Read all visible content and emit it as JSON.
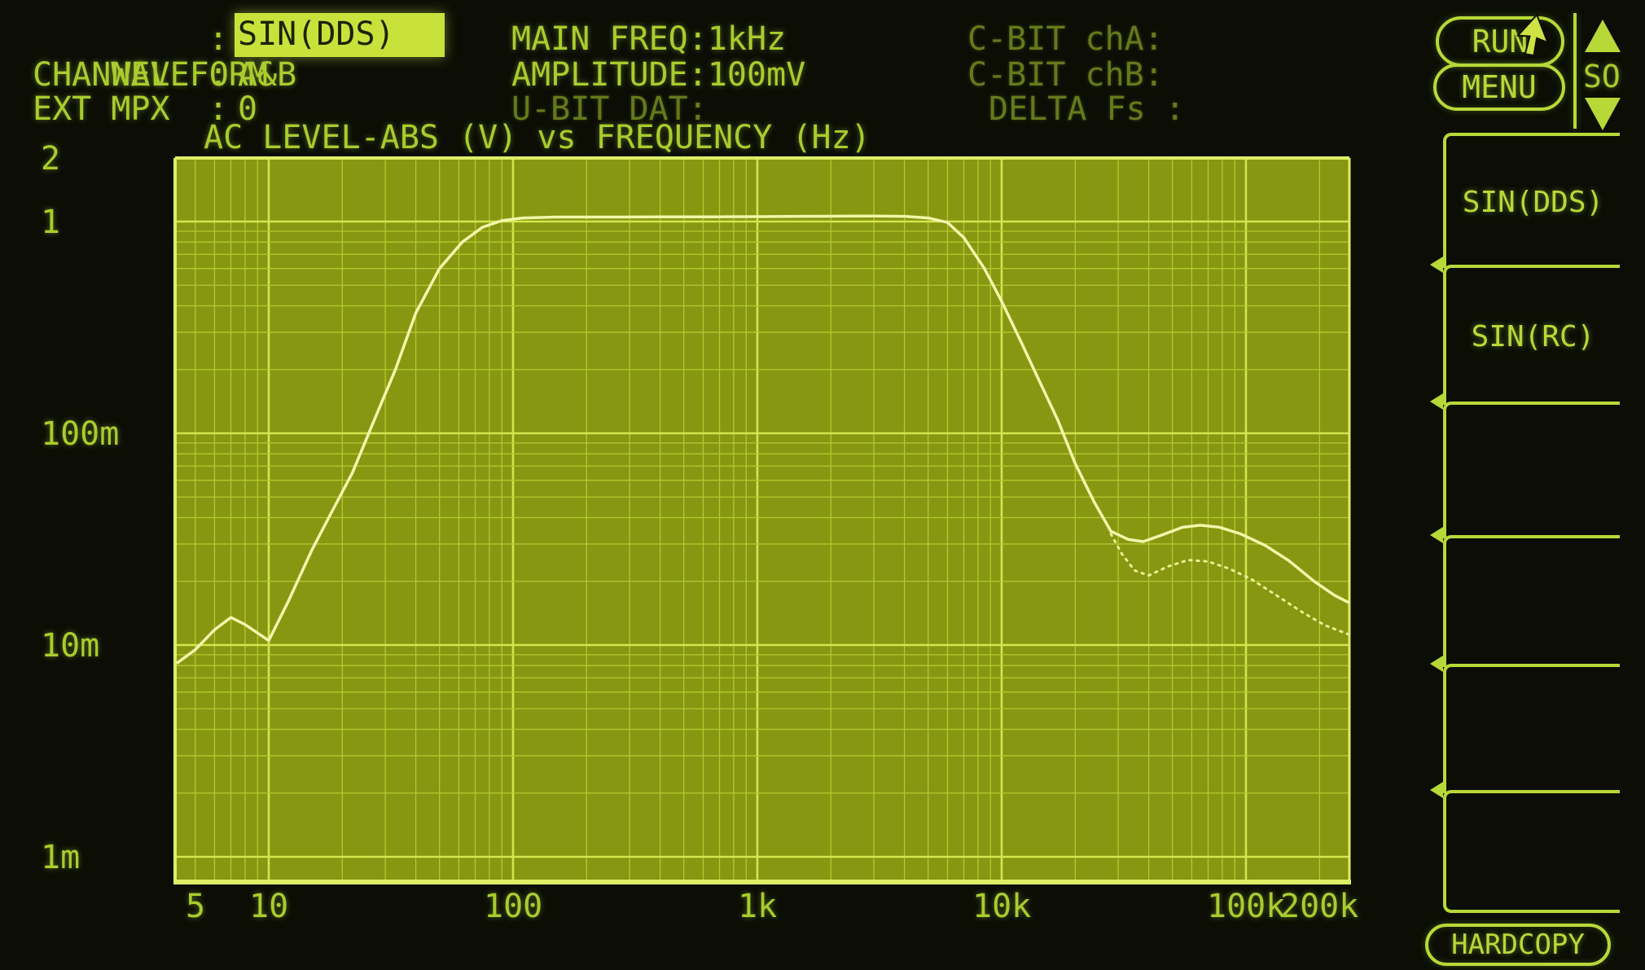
{
  "colors": {
    "screen_bg": "#0c0e05",
    "plot_bg": "#879712",
    "grid_minor": "#b2ca2e",
    "grid_major": "#d2e64e",
    "plot_border": "#dcee66",
    "trace_solid": "#f0f7aa",
    "trace_dotted": "#e6f190",
    "text_bright": "#a9cc2e",
    "text_dim": "#66791c",
    "highlight_bg": "#c9e23b",
    "highlight_text": "#1a2306",
    "outline_green": "#b8d838"
  },
  "header": {
    "left": [
      {
        "label": "WAVEFORM",
        "sep": ":",
        "value": "SIN(DDS)",
        "highlighted": true
      },
      {
        "label": "CHANNEL",
        "sep": ":",
        "value": "A&B",
        "highlighted": false
      },
      {
        "label": "EXT MPX",
        "sep": ":",
        "value": "0",
        "highlighted": false
      }
    ],
    "mid": [
      {
        "text": "MAIN FREQ:1kHz"
      },
      {
        "text": "AMPLITUDE:100mV"
      },
      {
        "text": "U-BIT DAT:"
      }
    ],
    "right": [
      {
        "text": "C-BIT chA:"
      },
      {
        "text": "C-BIT chB:"
      },
      {
        "text": "DELTA Fs :"
      }
    ],
    "run_label": "RUN",
    "menu_label": "MENU",
    "scroll_label": "SO"
  },
  "sidebar": {
    "buttons": [
      {
        "label": "SIN(DDS)"
      },
      {
        "label": "SIN(RC)"
      },
      {
        "label": ""
      },
      {
        "label": ""
      },
      {
        "label": ""
      },
      {
        "label": ""
      }
    ],
    "hardcopy_label": "HARDCOPY"
  },
  "chart_data": {
    "type": "line",
    "title": "AC LEVEL-ABS (V) vs FREQUENCY (Hz)",
    "x_scale": "log",
    "y_scale": "log",
    "x_unit": "Hz",
    "y_unit": "V",
    "x_range": [
      4.2,
      265000
    ],
    "y_range": [
      0.00078,
      2.0
    ],
    "grid": "log-log, minor lines at 2-9 of each decade",
    "legend_position": "none",
    "x_ticks": [
      {
        "f": 5,
        "label": "5"
      },
      {
        "f": 10,
        "label": "10"
      },
      {
        "f": 100,
        "label": "100"
      },
      {
        "f": 1000,
        "label": "1k"
      },
      {
        "f": 10000,
        "label": "10k"
      },
      {
        "f": 100000,
        "label": "100k"
      },
      {
        "f": 200000,
        "label": "200k"
      }
    ],
    "y_ticks": [
      {
        "v": 2,
        "label": "2"
      },
      {
        "v": 1,
        "label": "1"
      },
      {
        "v": 0.1,
        "label": "100m"
      },
      {
        "v": 0.01,
        "label": "10m"
      },
      {
        "v": 0.001,
        "label": "1m"
      }
    ],
    "series": [
      {
        "name": "level-vs-frequency-solid",
        "style": "solid",
        "points": [
          [
            4.2,
            0.0082
          ],
          [
            5,
            0.0095
          ],
          [
            6,
            0.0118
          ],
          [
            7,
            0.0135
          ],
          [
            8,
            0.0125
          ],
          [
            10,
            0.0105
          ],
          [
            12,
            0.016
          ],
          [
            15,
            0.028
          ],
          [
            18,
            0.042
          ],
          [
            22,
            0.065
          ],
          [
            27,
            0.115
          ],
          [
            33,
            0.2
          ],
          [
            40,
            0.37
          ],
          [
            50,
            0.6
          ],
          [
            62,
            0.8
          ],
          [
            75,
            0.94
          ],
          [
            90,
            1.01
          ],
          [
            110,
            1.04
          ],
          [
            150,
            1.05
          ],
          [
            250,
            1.05
          ],
          [
            400,
            1.052
          ],
          [
            700,
            1.053
          ],
          [
            1000,
            1.055
          ],
          [
            1500,
            1.058
          ],
          [
            2200,
            1.06
          ],
          [
            3000,
            1.062
          ],
          [
            4000,
            1.058
          ],
          [
            5000,
            1.04
          ],
          [
            6000,
            0.99
          ],
          [
            7000,
            0.84
          ],
          [
            8500,
            0.6
          ],
          [
            10000,
            0.42
          ],
          [
            12000,
            0.27
          ],
          [
            14000,
            0.185
          ],
          [
            17000,
            0.115
          ],
          [
            20000,
            0.072
          ],
          [
            24000,
            0.047
          ],
          [
            28000,
            0.0345
          ],
          [
            33000,
            0.0315
          ],
          [
            38000,
            0.0308
          ],
          [
            45000,
            0.033
          ],
          [
            55000,
            0.036
          ],
          [
            65000,
            0.0368
          ],
          [
            78000,
            0.036
          ],
          [
            95000,
            0.0335
          ],
          [
            120000,
            0.0295
          ],
          [
            150000,
            0.025
          ],
          [
            190000,
            0.02
          ],
          [
            230000,
            0.0172
          ],
          [
            265000,
            0.0158
          ]
        ]
      },
      {
        "name": "level-vs-frequency-dotted",
        "style": "dotted",
        "points": [
          [
            28000,
            0.0335
          ],
          [
            31000,
            0.027
          ],
          [
            35000,
            0.0225
          ],
          [
            40000,
            0.0213
          ],
          [
            48000,
            0.0235
          ],
          [
            58000,
            0.0252
          ],
          [
            70000,
            0.0248
          ],
          [
            85000,
            0.023
          ],
          [
            105000,
            0.0205
          ],
          [
            135000,
            0.017
          ],
          [
            170000,
            0.0143
          ],
          [
            210000,
            0.0124
          ],
          [
            265000,
            0.0112
          ]
        ]
      }
    ]
  }
}
